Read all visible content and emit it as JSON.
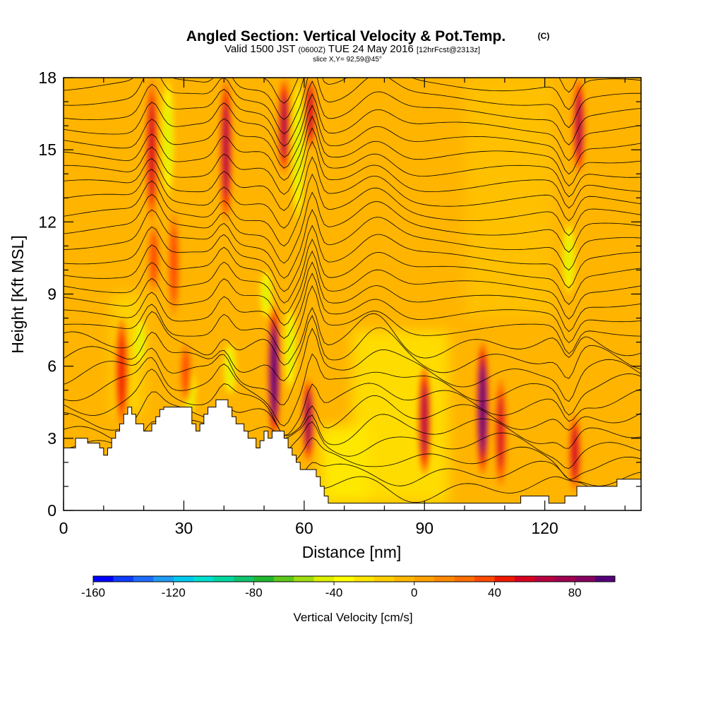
{
  "chart_data": {
    "type": "heatmap",
    "title": "Angled Section: Vertical Velocity & Pot.Temp.",
    "title_mark": "(C)",
    "subtitle": {
      "prefix": "Valid 1500 JST",
      "utc": "(0600Z)",
      "date": "TUE 24 May 2016",
      "forecast": "[12hrFcst@2313z]"
    },
    "slice_label": "slice X,Y= 92,59@45°",
    "xlabel": "Distance [nm]",
    "ylabel": "Height [Kft MSL]",
    "xlim": [
      0,
      144
    ],
    "ylim": [
      0,
      18
    ],
    "x_ticks": [
      0,
      30,
      60,
      90,
      120
    ],
    "y_ticks": [
      0,
      3,
      6,
      9,
      12,
      15,
      18
    ],
    "grid": false,
    "colorbar": {
      "label": "Vertical Velocity [cm/s]",
      "placement": "bottom",
      "min": -160,
      "max": 100,
      "step": 10,
      "ticks": [
        -160,
        -120,
        -80,
        -40,
        0,
        40,
        80
      ],
      "colors": [
        "#0000ff",
        "#0f3cff",
        "#1e6cff",
        "#1f9cf5",
        "#00c8f0",
        "#00e0d0",
        "#00d8a0",
        "#10c470",
        "#20b830",
        "#5cc81a",
        "#a0dc10",
        "#dcf000",
        "#ffff00",
        "#ffe600",
        "#ffcf00",
        "#ffb800",
        "#ffa200",
        "#ff8a00",
        "#ff6e00",
        "#ff4a00",
        "#f01800",
        "#d80020",
        "#b80040",
        "#a00050",
        "#88005f",
        "#55007a"
      ]
    },
    "terrain": [
      [
        0,
        2.6
      ],
      [
        3,
        2.6
      ],
      [
        3,
        3.0
      ],
      [
        6,
        3.0
      ],
      [
        6,
        2.8
      ],
      [
        9,
        2.8
      ],
      [
        9,
        2.6
      ],
      [
        10,
        2.6
      ],
      [
        10,
        2.3
      ],
      [
        11,
        2.3
      ],
      [
        11,
        2.6
      ],
      [
        12,
        2.6
      ],
      [
        12,
        3.0
      ],
      [
        13,
        3.0
      ],
      [
        13,
        3.3
      ],
      [
        14,
        3.3
      ],
      [
        14,
        3.6
      ],
      [
        15,
        3.6
      ],
      [
        15,
        4.0
      ],
      [
        16,
        4.0
      ],
      [
        16,
        4.3
      ],
      [
        17,
        4.3
      ],
      [
        17,
        4.0
      ],
      [
        18,
        4.0
      ],
      [
        18,
        3.6
      ],
      [
        20,
        3.6
      ],
      [
        20,
        3.3
      ],
      [
        22,
        3.3
      ],
      [
        22,
        3.6
      ],
      [
        23,
        3.6
      ],
      [
        23,
        3.9
      ],
      [
        24,
        3.9
      ],
      [
        24,
        4.2
      ],
      [
        25,
        4.2
      ],
      [
        25,
        4.3
      ],
      [
        32,
        4.3
      ],
      [
        32,
        3.6
      ],
      [
        33,
        3.6
      ],
      [
        33,
        3.3
      ],
      [
        34,
        3.3
      ],
      [
        34,
        3.6
      ],
      [
        35,
        3.6
      ],
      [
        35,
        4.0
      ],
      [
        36,
        4.0
      ],
      [
        36,
        4.3
      ],
      [
        38,
        4.3
      ],
      [
        38,
        4.6
      ],
      [
        41,
        4.6
      ],
      [
        41,
        4.3
      ],
      [
        42,
        4.3
      ],
      [
        42,
        3.9
      ],
      [
        43,
        3.9
      ],
      [
        43,
        3.6
      ],
      [
        45,
        3.6
      ],
      [
        45,
        3.3
      ],
      [
        46,
        3.3
      ],
      [
        46,
        3.0
      ],
      [
        48,
        3.0
      ],
      [
        48,
        2.6
      ],
      [
        49,
        2.6
      ],
      [
        49,
        2.9
      ],
      [
        50,
        2.9
      ],
      [
        50,
        3.3
      ],
      [
        51,
        3.3
      ],
      [
        51,
        3.0
      ],
      [
        52,
        3.0
      ],
      [
        52,
        3.3
      ],
      [
        55,
        3.3
      ],
      [
        55,
        3.0
      ],
      [
        56,
        3.0
      ],
      [
        56,
        2.6
      ],
      [
        57,
        2.6
      ],
      [
        57,
        2.3
      ],
      [
        58,
        2.3
      ],
      [
        58,
        2.0
      ],
      [
        59,
        2.0
      ],
      [
        59,
        1.7
      ],
      [
        63,
        1.7
      ],
      [
        63,
        1.4
      ],
      [
        64,
        1.4
      ],
      [
        64,
        1.0
      ],
      [
        65,
        1.0
      ],
      [
        65,
        0.6
      ],
      [
        66,
        0.6
      ],
      [
        66,
        0.3
      ],
      [
        114,
        0.3
      ],
      [
        114,
        0.6
      ],
      [
        121,
        0.6
      ],
      [
        121,
        0.3
      ],
      [
        125,
        0.3
      ],
      [
        125,
        0.6
      ],
      [
        128,
        0.6
      ],
      [
        128,
        1.0
      ],
      [
        138,
        1.0
      ],
      [
        138,
        1.3
      ],
      [
        144,
        1.3
      ],
      [
        144,
        0
      ],
      [
        0,
        0
      ]
    ],
    "updrafts": [
      {
        "x": 14.5,
        "y0": 3.5,
        "y1": 8.0,
        "w": 40
      },
      {
        "x": 22.0,
        "y0": 12.0,
        "y1": 18.0,
        "w": 55
      },
      {
        "x": 22.5,
        "y0": 9.0,
        "y1": 12.0,
        "w": 35
      },
      {
        "x": 27.5,
        "y0": 8.0,
        "y1": 12.5,
        "w": 35
      },
      {
        "x": 30.5,
        "y0": 4.5,
        "y1": 7.0,
        "w": 30
      },
      {
        "x": 40.5,
        "y0": 12.0,
        "y1": 18.0,
        "w": 60
      },
      {
        "x": 52.5,
        "y0": 3.0,
        "y1": 8.5,
        "w": 95
      },
      {
        "x": 55.0,
        "y0": 14.0,
        "y1": 18.0,
        "w": 60
      },
      {
        "x": 61.0,
        "y0": 2.0,
        "y1": 5.5,
        "w": 75
      },
      {
        "x": 61.5,
        "y0": 15.0,
        "y1": 18.0,
        "w": 55
      },
      {
        "x": 90.0,
        "y0": 1.5,
        "y1": 6.0,
        "w": 60
      },
      {
        "x": 104.5,
        "y0": 1.5,
        "y1": 7.0,
        "w": 90
      },
      {
        "x": 109.0,
        "y0": 1.0,
        "y1": 5.5,
        "w": 50
      },
      {
        "x": 127.5,
        "y0": 0.8,
        "y1": 4.0,
        "w": 55
      },
      {
        "x": 128.5,
        "y0": 14.0,
        "y1": 18.0,
        "w": 60
      }
    ],
    "downdrafts": [
      {
        "x": 26.0,
        "y0": 13.0,
        "y1": 18.0,
        "w": -50
      },
      {
        "x": 19.0,
        "y0": 6.0,
        "y1": 8.0,
        "w": -45
      },
      {
        "x": 31.5,
        "y0": 4.0,
        "y1": 6.0,
        "w": -45
      },
      {
        "x": 41.5,
        "y0": 4.8,
        "y1": 7.0,
        "w": -45
      },
      {
        "x": 50.5,
        "y0": 8.0,
        "y1": 10.0,
        "w": -45
      },
      {
        "x": 56.5,
        "y0": 5.0,
        "y1": 8.5,
        "w": -45
      },
      {
        "x": 58.5,
        "y0": 12.0,
        "y1": 18.0,
        "w": -45
      },
      {
        "x": 126.0,
        "y0": 9.0,
        "y1": 12.0,
        "w": -45
      }
    ]
  }
}
